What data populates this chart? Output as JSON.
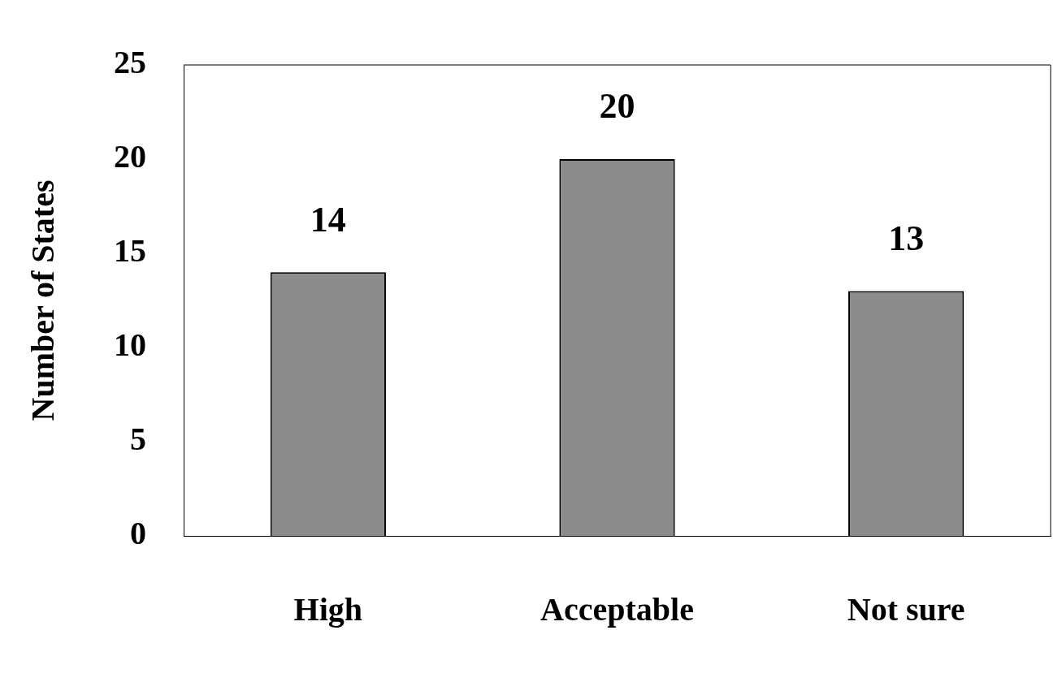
{
  "chart_data": {
    "type": "bar",
    "ylabel": "Number of States",
    "categories": [
      "High",
      "Acceptable",
      "Not sure"
    ],
    "values": [
      14,
      20,
      13
    ],
    "color": "#8c8c8c",
    "ylim": [
      0,
      25
    ],
    "yticks": [
      0,
      5,
      10,
      15,
      20,
      25
    ],
    "grid": false,
    "legend": false,
    "data_labels": true
  }
}
